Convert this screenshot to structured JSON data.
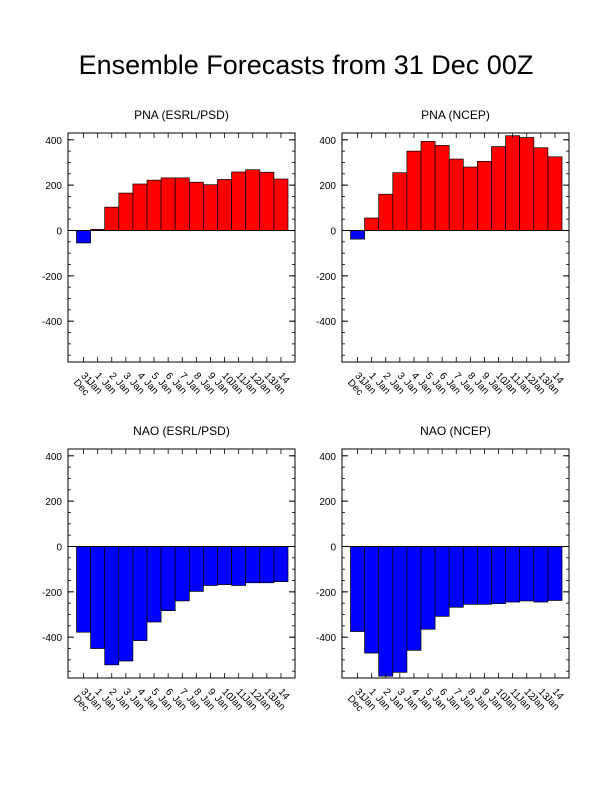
{
  "title": "Ensemble Forecasts from 31 Dec 00Z",
  "colors": {
    "positive": "#ff0000",
    "negative": "#0000ff",
    "outline": "#000000"
  },
  "chart_data": [
    {
      "type": "bar",
      "title": "PNA (ESRL/PSD)",
      "categories": [
        "31 Dec",
        "1 Jan",
        "2 Jan",
        "3 Jan",
        "4 Jan",
        "5 Jan",
        "6 Jan",
        "7 Jan",
        "8 Jan",
        "9 Jan",
        "10 Jan",
        "11 Jan",
        "12 Jan",
        "13 Jan",
        "14 Jan"
      ],
      "values": [
        -55,
        5,
        103,
        165,
        205,
        222,
        232,
        232,
        213,
        202,
        225,
        258,
        268,
        257,
        227
      ],
      "ylim": [
        -580,
        430
      ],
      "yticks": [
        400,
        200,
        0,
        -200,
        -400
      ]
    },
    {
      "type": "bar",
      "title": "PNA (NCEP)",
      "categories": [
        "31 Dec",
        "1 Jan",
        "2 Jan",
        "3 Jan",
        "4 Jan",
        "5 Jan",
        "6 Jan",
        "7 Jan",
        "8 Jan",
        "9 Jan",
        "10 Jan",
        "11 Jan",
        "12 Jan",
        "13 Jan",
        "14 Jan"
      ],
      "values": [
        -38,
        55,
        160,
        255,
        350,
        393,
        375,
        315,
        280,
        305,
        370,
        418,
        410,
        365,
        325
      ],
      "ylim": [
        -580,
        430
      ],
      "yticks": [
        400,
        200,
        0,
        -200,
        -400
      ]
    },
    {
      "type": "bar",
      "title": "NAO (ESRL/PSD)",
      "categories": [
        "31 Dec",
        "1 Jan",
        "2 Jan",
        "3 Jan",
        "4 Jan",
        "5 Jan",
        "6 Jan",
        "7 Jan",
        "8 Jan",
        "9 Jan",
        "10 Jan",
        "11 Jan",
        "12 Jan",
        "13 Jan",
        "14 Jan"
      ],
      "values": [
        -378,
        -450,
        -522,
        -505,
        -415,
        -333,
        -283,
        -240,
        -198,
        -172,
        -168,
        -172,
        -160,
        -160,
        -155
      ],
      "ylim": [
        -580,
        430
      ],
      "yticks": [
        400,
        200,
        0,
        -200,
        -400
      ]
    },
    {
      "type": "bar",
      "title": "NAO (NCEP)",
      "categories": [
        "31 Dec",
        "1 Jan",
        "2 Jan",
        "3 Jan",
        "4 Jan",
        "5 Jan",
        "6 Jan",
        "7 Jan",
        "8 Jan",
        "9 Jan",
        "10 Jan",
        "11 Jan",
        "12 Jan",
        "13 Jan",
        "14 Jan"
      ],
      "values": [
        -375,
        -470,
        -572,
        -555,
        -458,
        -365,
        -308,
        -268,
        -255,
        -255,
        -252,
        -245,
        -240,
        -245,
        -238
      ],
      "ylim": [
        -580,
        430
      ],
      "yticks": [
        400,
        200,
        0,
        -200,
        -400
      ]
    }
  ]
}
